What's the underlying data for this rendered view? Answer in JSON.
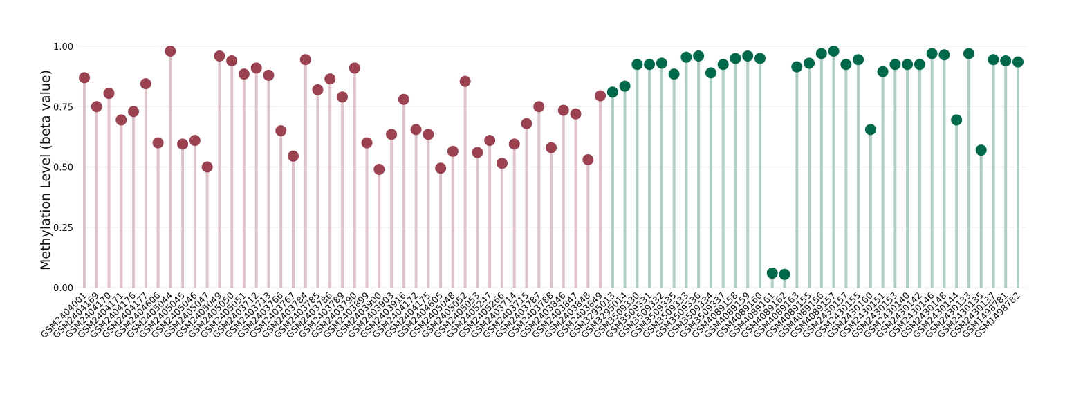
{
  "chart_data": {
    "type": "lollipop",
    "y_label": "Methylation Level (beta value)",
    "categories": [
      "GSM2404001",
      "GSM2404169",
      "GSM2404170",
      "GSM2404171",
      "GSM2404176",
      "GSM2404177",
      "GSM2404606",
      "GSM2405044",
      "GSM2405045",
      "GSM2405046",
      "GSM2405047",
      "GSM2405049",
      "GSM2405050",
      "GSM2405051",
      "GSM2403712",
      "GSM2403713",
      "GSM2403766",
      "GSM2403767",
      "GSM2403784",
      "GSM2403785",
      "GSM2403786",
      "GSM2403789",
      "GSM2403790",
      "GSM2403899",
      "GSM2403900",
      "GSM2403903",
      "GSM2403916",
      "GSM2404172",
      "GSM2404175",
      "GSM2404605",
      "GSM2405048",
      "GSM2405052",
      "GSM2405053",
      "GSM2405247",
      "GSM2405266",
      "GSM2403714",
      "GSM2403715",
      "GSM2403787",
      "GSM2403788",
      "GSM2403846",
      "GSM2403847",
      "GSM2403848",
      "GSM2403849",
      "GSM3295013",
      "GSM3295014",
      "GSM3509330",
      "GSM3509331",
      "GSM3509332",
      "GSM3509335",
      "GSM3509333",
      "GSM3509336",
      "GSM3509334",
      "GSM3509337",
      "GSM4089158",
      "GSM4089159",
      "GSM4089160",
      "GSM4089161",
      "GSM4089162",
      "GSM4089163",
      "GSM4089155",
      "GSM4089156",
      "GSM4089157",
      "GSM2430157",
      "GSM2430155",
      "GSM2430160",
      "GSM2430151",
      "GSM2430153",
      "GSM2430140",
      "GSM2430142",
      "GSM2430146",
      "GSM2430148",
      "GSM2430144",
      "GSM2430133",
      "GSM2430135",
      "GSM2430137",
      "GSM1498781",
      "GSM1498782"
    ],
    "series": [
      {
        "color": "#9b4150",
        "stem_color": "#dfc3c9",
        "values": [
          0.87,
          0.75,
          0.805,
          0.695,
          0.73,
          0.845,
          0.6,
          0.98,
          0.595,
          0.61,
          0.5,
          0.96,
          0.94,
          0.885,
          0.91,
          0.88,
          0.65,
          0.545,
          0.945,
          0.82,
          0.865,
          0.79,
          0.91,
          0.6,
          0.49,
          0.635,
          0.78,
          0.655,
          0.635,
          0.495,
          0.565,
          0.855,
          0.56,
          0.61,
          0.515,
          0.595,
          0.68,
          0.75,
          0.58,
          0.735,
          0.72,
          0.53,
          0.795,
          null,
          null,
          null,
          null,
          null,
          null,
          null,
          null,
          null,
          null,
          null,
          null,
          null,
          null,
          null,
          null,
          null,
          null,
          null,
          null,
          null,
          null,
          null,
          null,
          null,
          null,
          null,
          null,
          null,
          null,
          null,
          null,
          null,
          null
        ]
      },
      {
        "color": "#00694a",
        "stem_color": "#aecfc4",
        "values": [
          null,
          null,
          null,
          null,
          null,
          null,
          null,
          null,
          null,
          null,
          null,
          null,
          null,
          null,
          null,
          null,
          null,
          null,
          null,
          null,
          null,
          null,
          null,
          null,
          null,
          null,
          null,
          null,
          null,
          null,
          null,
          null,
          null,
          null,
          null,
          null,
          null,
          null,
          null,
          null,
          null,
          null,
          null,
          0.81,
          0.835,
          0.925,
          0.925,
          0.93,
          0.885,
          0.955,
          0.96,
          0.89,
          0.925,
          0.95,
          0.96,
          0.95,
          0.06,
          0.055,
          0.915,
          0.93,
          0.97,
          0.98,
          0.925,
          0.945,
          0.655,
          0.895,
          0.925,
          0.925,
          0.925,
          0.97,
          0.965,
          0.695,
          0.97,
          0.57,
          0.945,
          0.94,
          0.935
        ]
      }
    ],
    "ylim": [
      0,
      1
    ],
    "yticks": [
      {
        "value": 0,
        "label": "0.00"
      },
      {
        "value": 0.25,
        "label": "0.25"
      },
      {
        "value": 0.5,
        "label": "0.50"
      },
      {
        "value": 0.75,
        "label": "0.75"
      },
      {
        "value": 1,
        "label": "1.00"
      }
    ],
    "grid": true
  }
}
